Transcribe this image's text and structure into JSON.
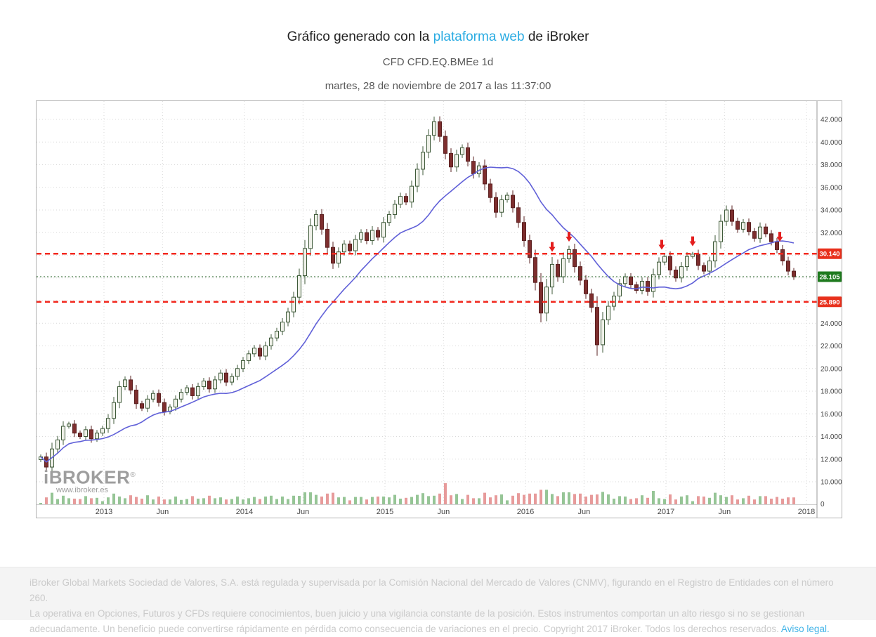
{
  "header": {
    "title_prefix": "Gráfico generado con la ",
    "title_link": "plataforma web",
    "title_suffix": " de iBroker",
    "subtitle": "CFD CFD.EQ.BMEe 1d",
    "timestamp": "martes, 28 de noviembre de 2017 a las 11:37:00",
    "link_color": "#29abe2"
  },
  "watermark": {
    "logo": "iBROKER",
    "reg": "®",
    "url": "www.ibroker.es"
  },
  "footer": {
    "line1": "iBroker Global Markets Sociedad de Valores, S.A. está regulada y supervisada por la Comisión Nacional del Mercado de Valores (CNMV), figurando en el Registro de Entidades con el número 260.",
    "line2": "La operativa en Opciones, Futuros y CFDs requiere conocimientos, buen juicio y una vigilancia constante de la posición. Estos instrumentos comportan un alto riesgo si no se gestionan adecuadamente. Un beneficio puede convertirse rápidamente en pérdida como consecuencia de variaciones en el precio. Copyright 2017 iBroker. Todos los derechos reservados. ",
    "legal_link": "Aviso legal."
  },
  "chart_data": {
    "type": "candlestick",
    "instrument": "CFD CFD.EQ.BMEe",
    "interval": "1d",
    "axis": {
      "y_min": 10,
      "y_max": 42,
      "y_step": 2,
      "x_min": 2012.52,
      "x_max": 2018.08
    },
    "t_start": 2012.55,
    "dt": 0.04,
    "closes": [
      12.2,
      11.3,
      12.9,
      13.7,
      14.9,
      15.1,
      14.3,
      14.0,
      14.6,
      13.8,
      14.3,
      14.7,
      15.6,
      17.0,
      18.4,
      19.0,
      18.1,
      16.9,
      16.5,
      17.3,
      17.8,
      17.0,
      16.2,
      16.6,
      17.3,
      17.9,
      18.3,
      17.6,
      18.4,
      18.9,
      18.2,
      19.0,
      19.6,
      18.8,
      19.3,
      20.0,
      20.7,
      21.3,
      21.8,
      21.1,
      22.0,
      22.7,
      23.3,
      24.1,
      25.0,
      26.3,
      28.2,
      30.6,
      32.6,
      33.6,
      32.3,
      30.7,
      29.3,
      30.3,
      31.0,
      30.4,
      31.4,
      32.0,
      31.3,
      32.2,
      31.6,
      32.9,
      33.6,
      34.5,
      35.2,
      34.7,
      36.1,
      37.6,
      39.1,
      40.6,
      41.8,
      40.5,
      39.0,
      37.8,
      38.9,
      39.5,
      38.3,
      37.2,
      37.9,
      36.3,
      35.1,
      33.8,
      34.9,
      35.3,
      34.2,
      32.9,
      31.3,
      29.8,
      27.6,
      24.9,
      27.2,
      29.2,
      28.1,
      29.7,
      30.5,
      29.0,
      27.8,
      26.6,
      25.4,
      22.1,
      24.3,
      25.5,
      26.4,
      27.5,
      28.1,
      27.4,
      26.9,
      27.7,
      26.8,
      28.3,
      29.4,
      29.9,
      28.7,
      28.0,
      29.0,
      29.9,
      30.1,
      29.1,
      28.6,
      29.5,
      31.2,
      33.0,
      34.0,
      33.0,
      32.3,
      32.9,
      32.1,
      31.5,
      32.5,
      31.9,
      31.2,
      30.5,
      29.5,
      28.6,
      28.105
    ],
    "ma": {
      "name": "moving-average",
      "window_points": 18,
      "color": "#6060d8"
    },
    "x_ticks": [
      {
        "t": 2013.0,
        "label": "2013"
      },
      {
        "t": 2013.4167,
        "label": "Jun"
      },
      {
        "t": 2014.0,
        "label": "2014"
      },
      {
        "t": 2014.4167,
        "label": "Jun"
      },
      {
        "t": 2015.0,
        "label": "2015"
      },
      {
        "t": 2015.4167,
        "label": "Jun"
      },
      {
        "t": 2016.0,
        "label": "2016"
      },
      {
        "t": 2016.4167,
        "label": "Jun"
      },
      {
        "t": 2017.0,
        "label": "2017"
      },
      {
        "t": 2017.4167,
        "label": "Jun"
      },
      {
        "t": 2018.0,
        "label": "2018"
      }
    ],
    "y_ticks": [
      {
        "value": 42,
        "label": "42.000"
      },
      {
        "value": 40,
        "label": "40.000"
      },
      {
        "value": 38,
        "label": "38.000"
      },
      {
        "value": 36,
        "label": "36.000"
      },
      {
        "value": 34,
        "label": "34.000"
      },
      {
        "value": 32,
        "label": "32.000"
      },
      {
        "value": 24,
        "label": "24.000"
      },
      {
        "value": 22,
        "label": "22.000"
      },
      {
        "value": 20,
        "label": "20.000"
      },
      {
        "value": 18,
        "label": "18.000"
      },
      {
        "value": 16,
        "label": "16.000"
      },
      {
        "value": 14,
        "label": "14.000"
      },
      {
        "value": 12,
        "label": "12.000"
      },
      {
        "value": 10,
        "label": "10.000"
      }
    ],
    "volume_zero_label": "0",
    "levels": [
      {
        "price": 30.14,
        "label": "30.140",
        "badge_color": "#e8301c",
        "line_color": "#f2281e",
        "style": "dashed"
      },
      {
        "price": 28.105,
        "label": "28.105",
        "badge_color": "#1e7a1e",
        "line_color": "#1f5c1f",
        "style": "dotted"
      },
      {
        "price": 25.89,
        "label": "25.890",
        "badge_color": "#e8301c",
        "line_color": "#f2281e",
        "style": "dashed"
      }
    ],
    "arrows": [
      {
        "t": 2016.19,
        "price": 30.3
      },
      {
        "t": 2016.31,
        "price": 31.2
      },
      {
        "t": 2016.97,
        "price": 30.5
      },
      {
        "t": 2017.19,
        "price": 30.8
      },
      {
        "t": 2017.81,
        "price": 31.2
      }
    ],
    "volume_spikes": [
      {
        "index": 46,
        "height": 12
      },
      {
        "index": 72,
        "height": 30
      },
      {
        "index": 94,
        "height": 17
      },
      {
        "index": 99,
        "height": 14
      },
      {
        "index": 109,
        "height": 19
      }
    ],
    "colors": {
      "up_fill": "#eef0e8",
      "up_stroke": "#3f5a3a",
      "down_fill": "#7d2e2e",
      "down_stroke": "#5a2020",
      "grid": "#d9d9d9",
      "vol_up": "#96c596",
      "vol_down": "#e79b9b",
      "arrow": "#e41e1e",
      "axis_text": "#444444",
      "axis_line": "#999999"
    }
  }
}
